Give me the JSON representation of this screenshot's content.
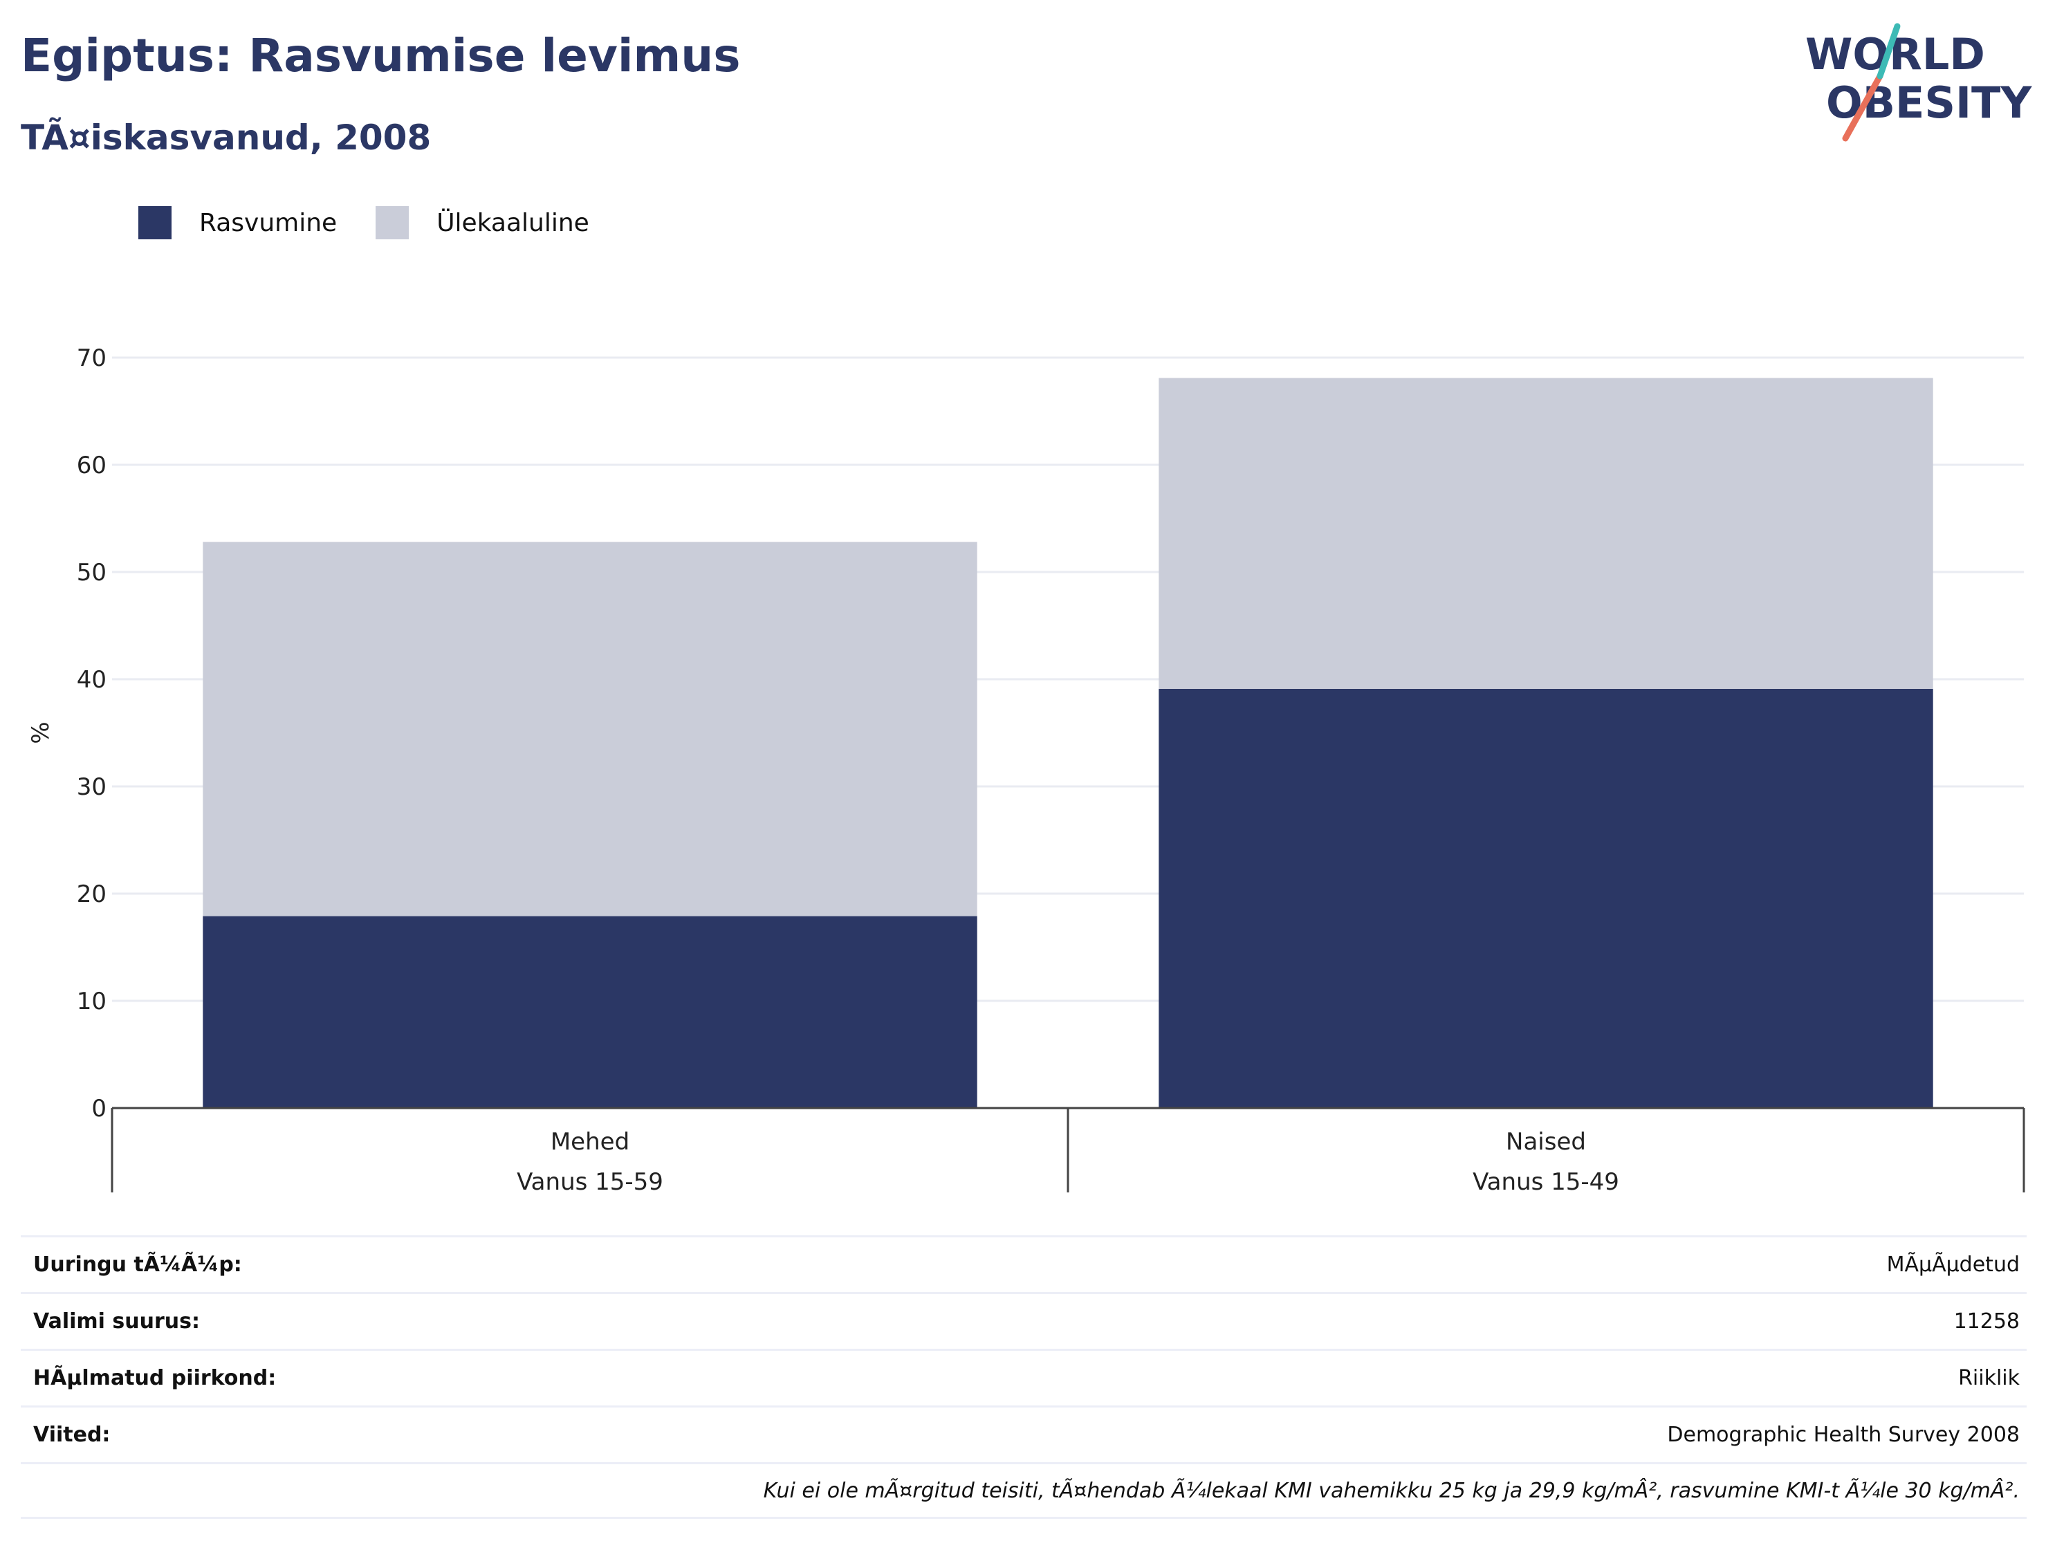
{
  "header": {
    "title": "Egiptus: Rasvumise levimus",
    "subtitle": "TÃ¤iskasvanud, 2008"
  },
  "logo": {
    "line1": "WORLD",
    "line2": "OBESITY"
  },
  "colors": {
    "obesity": "#2b3765",
    "overweight": "#cacdd9",
    "text": "#2b3765"
  },
  "chart_data": {
    "type": "bar",
    "stacked": true,
    "categories": [
      "Mehed",
      "Naised"
    ],
    "category_sublabels": [
      "Vanus 15-59",
      "Vanus 15-49"
    ],
    "series": [
      {
        "name": "Rasvumine",
        "values": [
          17.9,
          39.1
        ]
      },
      {
        "name": "Ülekaaluline",
        "values": [
          34.9,
          29.0
        ]
      }
    ],
    "ylabel": "%",
    "ylim": [
      0,
      70
    ],
    "yticks": [
      0,
      10,
      20,
      30,
      40,
      50,
      60,
      70
    ],
    "grid": true,
    "legend_position": "top-left"
  },
  "info": {
    "rows": [
      {
        "label": "Uuringu tÃ¼Ã¼p:",
        "value": "MÃµÃµdetud"
      },
      {
        "label": "Valimi suurus:",
        "value": "11258"
      },
      {
        "label": "HÃµlmatud piirkond:",
        "value": "Riiklik"
      },
      {
        "label": "Viited:",
        "value": "Demographic Health Survey 2008"
      }
    ],
    "note": "Kui ei ole mÃ¤rgitud teisiti, tÃ¤hendab Ã¼lekaal KMI vahemikku 25 kg ja 29,9 kg/mÂ², rasvumine KMI-t Ã¼le 30 kg/mÂ²."
  }
}
